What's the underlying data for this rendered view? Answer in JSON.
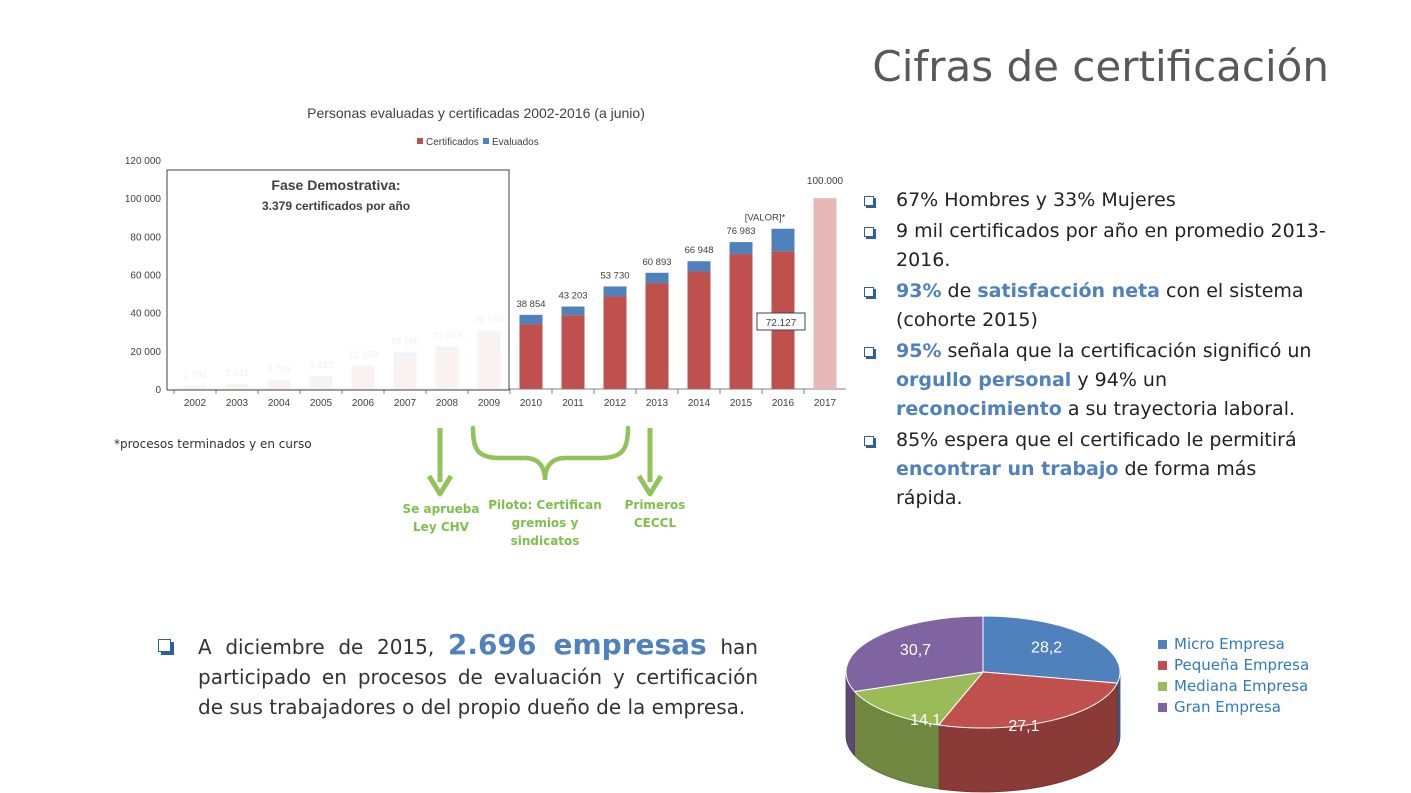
{
  "title": "Cifras de certificación",
  "chart_data": [
    {
      "type": "bar",
      "stacked": true,
      "title": "Personas evaluadas y certificadas 2002-2016 (a junio)",
      "categories": [
        "2002",
        "2003",
        "2004",
        "2005",
        "2006",
        "2007",
        "2008",
        "2009",
        "2010",
        "2011",
        "2012",
        "2013",
        "2014",
        "2015",
        "2016",
        "2017"
      ],
      "series": [
        {
          "name": "Certificados",
          "color": "#c0504d",
          "values": [
            1000,
            2400,
            4300,
            5700,
            11000,
            16400,
            19500,
            26500,
            34000,
            38700,
            48500,
            55500,
            61600,
            70700,
            72127,
            null
          ]
        },
        {
          "name": "Evaluados",
          "color": "#4f81bd",
          "values": [
            792,
            221,
            499,
            1123,
            1259,
            2766,
            2849,
            4068,
            4854,
            4503,
            5230,
            5393,
            5348,
            6283,
            11855,
            null
          ]
        }
      ],
      "projection": {
        "category": "2017",
        "value": 100000,
        "color": "#e6b9b8",
        "label": "100.000"
      },
      "total_labels": [
        "1 792",
        "2 621",
        "4 799",
        "6 823",
        "12 259",
        "19 166",
        "22 349",
        "30 568",
        "38 854",
        "43 203",
        "53 730",
        "60 893",
        "66 948",
        "76 983",
        "[VALOR]*",
        ""
      ],
      "cert_label_2016": "72.127",
      "y_ticks": [
        0,
        20000,
        40000,
        60000,
        80000,
        100000,
        120000
      ],
      "y_tick_labels": [
        "0",
        "20 000",
        "40 000",
        "60 000",
        "80 000",
        "100 000",
        "120 000"
      ],
      "ylim": [
        0,
        120000
      ],
      "legend_position": "top",
      "grid": false
    },
    {
      "type": "pie",
      "style": "3d",
      "categories": [
        "Micro Empresa",
        "Pequeña Empresa",
        "Mediana Empresa",
        "Gran Empresa"
      ],
      "values": [
        28.2,
        27.1,
        14.1,
        30.7
      ],
      "labels": [
        "28,2",
        "27,1",
        "14,1",
        "30,7"
      ],
      "colors": [
        "#4f81bd",
        "#c0504d",
        "#9bbb59",
        "#8064a2"
      ],
      "legend_position": "right"
    }
  ],
  "phase_box": {
    "title": "Fase Demostrativa:",
    "subtitle": "3.379 certificados por año"
  },
  "footnote": "*procesos terminados y en curso",
  "phases": {
    "ley": "Se aprueba\nLey CHV",
    "piloto": "Piloto: Certifican\ngremios y\nsindicatos",
    "primeros": "Primeros\nCECCL"
  },
  "bullets": [
    [
      {
        "t": "67% Hombres y 33% Mujeres"
      }
    ],
    [
      {
        "t": "9 mil certificados por año en promedio 2013-2016."
      }
    ],
    [
      {
        "t": "93%",
        "h": true
      },
      {
        "t": " de "
      },
      {
        "t": "satisfacción neta",
        "h": true
      },
      {
        "t": " con el sistema (cohorte 2015)"
      }
    ],
    [
      {
        "t": "95%",
        "h": true
      },
      {
        "t": " señala que la certificación significó un "
      },
      {
        "t": "orgullo personal",
        "h": true
      },
      {
        "t": " y 94% un "
      },
      {
        "t": "reconocimiento",
        "h": true
      },
      {
        "t": " a su trayectoria laboral."
      }
    ],
    [
      {
        "t": "85% espera que el certificado le permitirá "
      },
      {
        "t": "encontrar un trabajo",
        "h": true
      },
      {
        "t": " de forma más rápida."
      }
    ]
  ],
  "empresas": {
    "pre": "A diciembre de 2015, ",
    "highlight": "2.696 empresas",
    "post": " han participado en procesos de evaluación y certificación de sus trabajadores o del propio dueño de la empresa."
  }
}
